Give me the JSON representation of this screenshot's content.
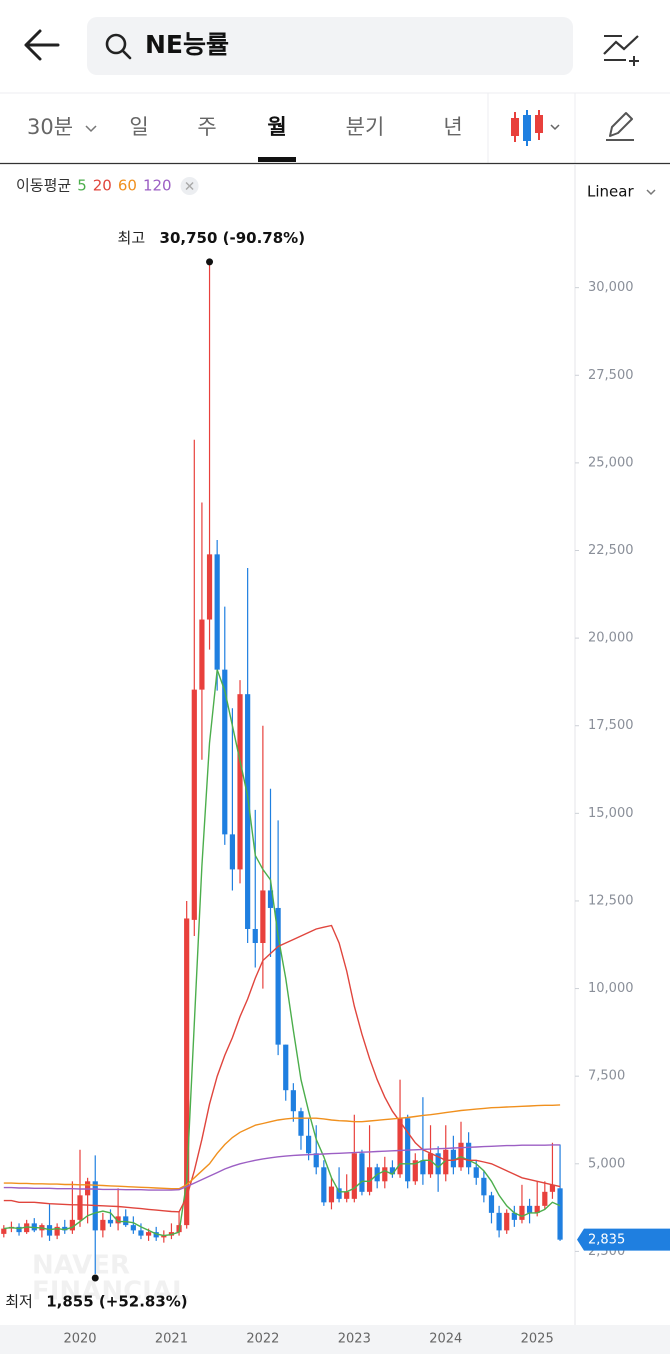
{
  "header": {
    "search": "NE능률"
  },
  "tabs": [
    "30분",
    "일",
    "주",
    "월",
    "분기",
    "년"
  ],
  "active_tab": 3,
  "chart_data": {
    "type": "candlestick",
    "legend_title": "이동평균",
    "scale_mode": "Linear",
    "watermark": [
      "NAVER",
      "FINANCIAL"
    ],
    "categories": [
      null,
      null,
      null,
      null,
      null,
      null,
      null,
      null,
      null,
      null,
      "2020",
      null,
      null,
      null,
      null,
      null,
      null,
      null,
      null,
      null,
      null,
      null,
      "2021",
      null,
      null,
      null,
      null,
      null,
      null,
      null,
      null,
      null,
      null,
      null,
      "2022",
      null,
      null,
      null,
      null,
      null,
      null,
      null,
      null,
      null,
      null,
      null,
      "2023",
      null,
      null,
      null,
      null,
      null,
      null,
      null,
      null,
      null,
      null,
      null,
      "2024",
      null,
      null,
      null,
      null,
      null,
      null,
      null,
      null,
      null,
      null,
      null,
      "2025",
      null,
      null,
      null
    ],
    "open": [
      3000,
      3150,
      3200,
      3050,
      3300,
      3100,
      3250,
      2950,
      3200,
      3100,
      3400,
      4100,
      4500,
      3100,
      3400,
      3300,
      3500,
      3250,
      3100,
      2950,
      3050,
      2900,
      2950,
      3050,
      3250,
      11960,
      18530,
      20530,
      22390,
      19100,
      14400,
      13400,
      18400,
      11700,
      11300,
      12800,
      12300,
      8400,
      7100,
      6500,
      5800,
      5300,
      4900,
      3900,
      4300,
      4000,
      4000,
      5300,
      4200,
      4900,
      4500,
      4900,
      4700,
      6300,
      4500,
      5100,
      4700,
      5300,
      4700,
      5400,
      4900,
      5600,
      4900,
      4600,
      4100,
      3600,
      3100,
      3600,
      3400,
      3800,
      3600,
      3800,
      4200,
      4300
    ],
    "high": [
      3250,
      3350,
      3300,
      3400,
      3450,
      3300,
      3850,
      3300,
      3400,
      4500,
      5400,
      4600,
      5240,
      3600,
      3700,
      4300,
      3700,
      3500,
      3300,
      3150,
      3200,
      3100,
      3300,
      3650,
      12500,
      25660,
      23870,
      30750,
      22800,
      20900,
      18000,
      18800,
      22000,
      15100,
      17500,
      15700,
      14800,
      8400,
      7300,
      6600,
      6300,
      6100,
      5100,
      4600,
      4900,
      4700,
      6400,
      5400,
      6100,
      5000,
      5200,
      5100,
      7400,
      6400,
      5300,
      6900,
      6100,
      5500,
      6100,
      5800,
      6200,
      5900,
      5100,
      4800,
      4200,
      3800,
      3700,
      3800,
      4400,
      4000,
      4500,
      4500,
      5600,
      5550
    ],
    "low": [
      2900,
      3050,
      2950,
      3000,
      3050,
      2900,
      2800,
      2850,
      3000,
      3000,
      3200,
      3300,
      1855,
      2900,
      3200,
      3100,
      3200,
      3000,
      2850,
      2800,
      2800,
      2750,
      2850,
      2950,
      3150,
      11500,
      16530,
      19670,
      18500,
      14100,
      12800,
      13000,
      11300,
      10600,
      10000,
      10900,
      8100,
      6800,
      6200,
      5400,
      5100,
      4700,
      3800,
      3700,
      3900,
      3900,
      3900,
      4100,
      4100,
      4300,
      4300,
      4600,
      4600,
      4300,
      4400,
      4400,
      4600,
      4200,
      4500,
      4700,
      4800,
      4700,
      4400,
      3900,
      3300,
      2900,
      3000,
      3200,
      3300,
      3300,
      3500,
      3700,
      4000,
      2800
    ],
    "close": [
      3150,
      3200,
      3050,
      3300,
      3100,
      3250,
      2950,
      3200,
      3100,
      3400,
      4100,
      4500,
      3100,
      3400,
      3300,
      3500,
      3250,
      3100,
      2950,
      3050,
      2900,
      2950,
      3050,
      3250,
      12000,
      18530,
      20530,
      22390,
      19100,
      14400,
      13400,
      18400,
      11700,
      11300,
      12800,
      12300,
      8400,
      7100,
      6500,
      5800,
      5300,
      4900,
      3900,
      4350,
      4000,
      4200,
      5300,
      4200,
      4900,
      4500,
      4900,
      4700,
      6300,
      4500,
      5100,
      4700,
      5300,
      4700,
      5400,
      4900,
      5600,
      4900,
      4600,
      4100,
      3600,
      3100,
      3600,
      3400,
      3800,
      3600,
      3800,
      4200,
      4400,
      2835
    ],
    "up_color": "#e8403c",
    "down_color": "#1f7fe0",
    "overlays": [
      {
        "name": "5",
        "color": "#4cae4c",
        "values": [
          3150,
          3180,
          3150,
          3200,
          3180,
          3170,
          3120,
          3150,
          3120,
          3190,
          3350,
          3520,
          3600,
          3650,
          3600,
          3350,
          3350,
          3320,
          3200,
          3100,
          3000,
          2950,
          2980,
          3050,
          4500,
          9000,
          13500,
          17000,
          19100,
          18500,
          17500,
          16500,
          15500,
          13800,
          13400,
          13100,
          11500,
          10300,
          8800,
          7400,
          6500,
          5700,
          5200,
          4600,
          4200,
          4200,
          4300,
          4500,
          4500,
          4700,
          4800,
          4700,
          5000,
          5000,
          5000,
          5100,
          5100,
          4900,
          5100,
          5100,
          5200,
          5100,
          5000,
          4800,
          4500,
          4100,
          3800,
          3600,
          3500,
          3600,
          3600,
          3700,
          3900,
          3800
        ]
      },
      {
        "name": "20",
        "color": "#e0453d",
        "values": [
          3950,
          3950,
          3900,
          3900,
          3900,
          3880,
          3860,
          3850,
          3840,
          3830,
          3830,
          3820,
          3810,
          3800,
          3790,
          3780,
          3760,
          3740,
          3720,
          3700,
          3680,
          3660,
          3640,
          3630,
          4050,
          4800,
          5700,
          6700,
          7500,
          8100,
          8600,
          9200,
          9700,
          10300,
          10800,
          11000,
          11200,
          11300,
          11400,
          11500,
          11600,
          11700,
          11750,
          11800,
          11300,
          10500,
          9500,
          8700,
          8000,
          7400,
          6900,
          6500,
          6200,
          5900,
          5600,
          5400,
          5300,
          5200,
          5100,
          5100,
          5150,
          5100,
          5100,
          5050,
          5000,
          4900,
          4800,
          4700,
          4600,
          4550,
          4500,
          4450,
          4400,
          4350
        ]
      },
      {
        "name": "60",
        "color": "#f0901e",
        "values": [
          4450,
          4450,
          4440,
          4440,
          4430,
          4430,
          4420,
          4420,
          4410,
          4410,
          4400,
          4400,
          4390,
          4380,
          4370,
          4360,
          4350,
          4340,
          4330,
          4320,
          4310,
          4300,
          4290,
          4290,
          4400,
          4600,
          4800,
          5000,
          5300,
          5550,
          5750,
          5900,
          6000,
          6100,
          6150,
          6200,
          6250,
          6280,
          6300,
          6300,
          6300,
          6300,
          6280,
          6250,
          6230,
          6220,
          6200,
          6200,
          6220,
          6240,
          6260,
          6280,
          6300,
          6320,
          6350,
          6380,
          6400,
          6430,
          6460,
          6490,
          6520,
          6540,
          6560,
          6580,
          6600,
          6610,
          6620,
          6630,
          6640,
          6650,
          6660,
          6670,
          6670,
          6680
        ]
      },
      {
        "name": "120",
        "color": "#9c5fc4",
        "values": [
          4320,
          4320,
          4310,
          4310,
          4300,
          4300,
          4300,
          4290,
          4290,
          4290,
          4280,
          4280,
          4280,
          4270,
          4270,
          4270,
          4260,
          4260,
          4260,
          4250,
          4250,
          4250,
          4250,
          4260,
          4350,
          4450,
          4550,
          4650,
          4750,
          4850,
          4930,
          5000,
          5050,
          5100,
          5140,
          5170,
          5200,
          5220,
          5240,
          5250,
          5260,
          5270,
          5280,
          5290,
          5300,
          5310,
          5320,
          5330,
          5340,
          5350,
          5360,
          5370,
          5380,
          5390,
          5400,
          5410,
          5420,
          5430,
          5440,
          5450,
          5460,
          5470,
          5480,
          5490,
          5500,
          5510,
          5520,
          5520,
          5530,
          5530,
          5530,
          5530,
          5540,
          5540
        ]
      }
    ],
    "ylim": [
      400,
      33500
    ],
    "yticks": [
      {
        "value": 2500,
        "label": "2,500"
      },
      {
        "value": 5000,
        "label": "5,000"
      },
      {
        "value": 7500,
        "label": "7,500"
      },
      {
        "value": 10000,
        "label": "10,000"
      },
      {
        "value": 12500,
        "label": "12,500"
      },
      {
        "value": 15000,
        "label": "15,000"
      },
      {
        "value": 17500,
        "label": "17,500"
      },
      {
        "value": 20000,
        "label": "20,000"
      },
      {
        "value": 22500,
        "label": "22,500"
      },
      {
        "value": 25000,
        "label": "25,000"
      },
      {
        "value": 27500,
        "label": "27,500"
      },
      {
        "value": 30000,
        "label": "30,000"
      }
    ],
    "max_label": {
      "title": "최고",
      "text": "30,750 (-90.78%)"
    },
    "min_label": {
      "title": "최저",
      "text": "1,855 (+52.83%)"
    },
    "last_price": {
      "value": 2835,
      "label": "2,835"
    }
  }
}
